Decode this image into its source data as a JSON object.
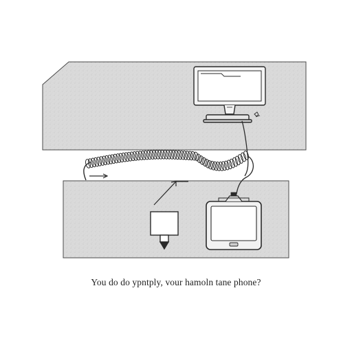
{
  "caption": "You do do ypntply, vour hamoln tane phone?",
  "colors": {
    "panel_fill": "#d9d9d9",
    "stroke": "#2a2a2a",
    "screen_fill": "#ffffff",
    "background": "#ffffff"
  },
  "icons": {
    "monitor": "desktop-monitor-icon",
    "tablet": "tablet-device-icon",
    "plug": "usb-plug-icon",
    "cable": "coiled-cable-icon",
    "arrow": "arrow-icon"
  }
}
